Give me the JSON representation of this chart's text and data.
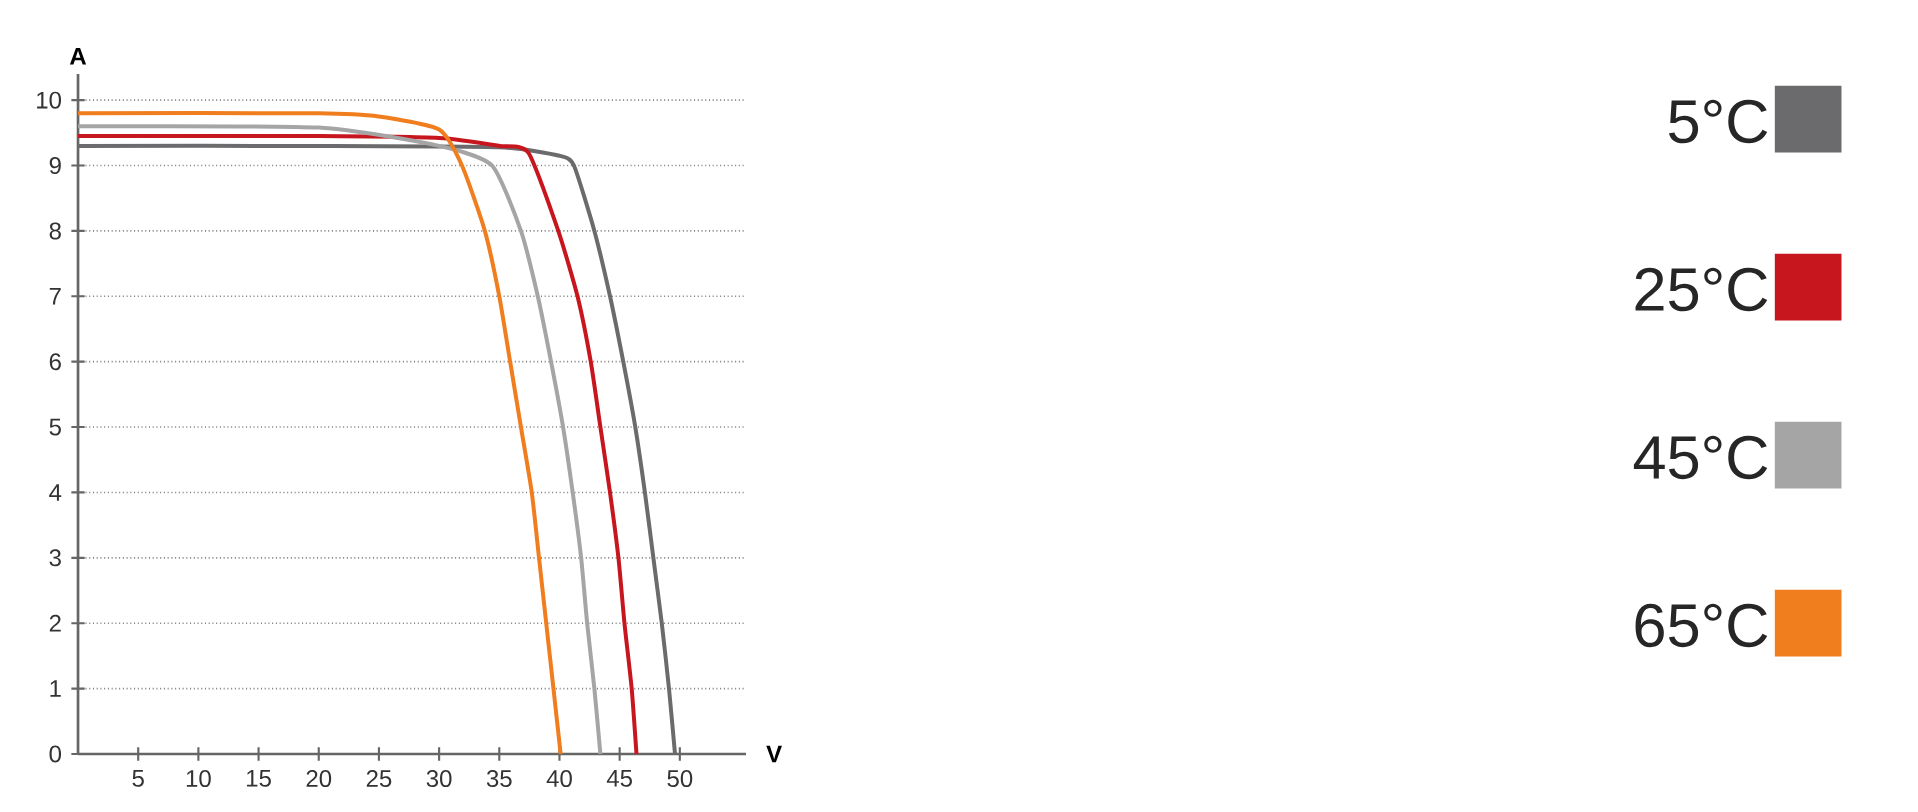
{
  "chart_data": {
    "type": "line",
    "xlabel": "V",
    "ylabel": "A",
    "xlim": [
      0,
      55.5
    ],
    "ylim": [
      0,
      10.4
    ],
    "xticks": [
      5,
      10,
      15,
      20,
      25,
      30,
      35,
      40,
      45,
      50
    ],
    "yticks": [
      0,
      1,
      2,
      3,
      4,
      5,
      6,
      7,
      8,
      9,
      10
    ],
    "grid": "y",
    "legend": "right",
    "marker": "none",
    "line_style": "solid",
    "series": [
      {
        "name": "5°C",
        "color": "#6b6b6d",
        "x": [
          0,
          20,
          35,
          40,
          41.2,
          42.9,
          44.2,
          45.3,
          46.3,
          47.1,
          47.8,
          48.5,
          49.1,
          49.6
        ],
        "values": [
          9.3,
          9.3,
          9.28,
          9.15,
          9,
          8,
          7,
          6,
          5,
          4,
          3,
          2,
          1,
          0
        ]
      },
      {
        "name": "25°C",
        "color": "#c8161e",
        "x": [
          0,
          20,
          30,
          35,
          37.4,
          39.9,
          41.5,
          42.6,
          43.4,
          44.2,
          44.9,
          45.4,
          46,
          46.4
        ],
        "values": [
          9.45,
          9.45,
          9.42,
          9.3,
          9.2,
          8,
          7,
          6,
          5,
          4,
          3,
          2,
          1,
          0
        ]
      },
      {
        "name": "45°C",
        "color": "#a5a5a5",
        "x": [
          0,
          20,
          30,
          34.4,
          36.8,
          38.2,
          39.3,
          40.3,
          41.1,
          41.8,
          42.3,
          42.9,
          43.4
        ],
        "values": [
          9.6,
          9.58,
          9.3,
          9,
          8,
          7,
          6,
          5,
          4,
          3,
          2,
          1,
          0
        ]
      },
      {
        "name": "65°C",
        "color": "#f07d1e",
        "x": [
          0,
          20,
          25,
          30,
          31.9,
          33.8,
          35,
          35.9,
          36.8,
          37.7,
          38.3,
          38.9,
          39.5,
          40.1
        ],
        "values": [
          9.8,
          9.8,
          9.75,
          9.55,
          9,
          8,
          7,
          6,
          5,
          4,
          3,
          2,
          1,
          0
        ]
      }
    ]
  }
}
